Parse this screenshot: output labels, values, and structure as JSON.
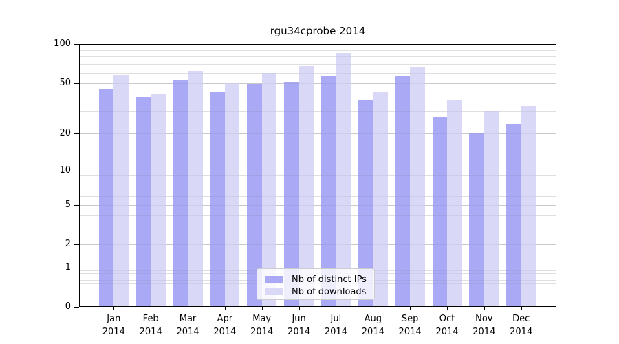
{
  "chart_data": {
    "type": "bar",
    "title": "rgu34cprobe 2014",
    "categories": [
      "Jan",
      "Feb",
      "Mar",
      "Apr",
      "May",
      "Jun",
      "Jul",
      "Aug",
      "Sep",
      "Oct",
      "Nov",
      "Dec"
    ],
    "category_year": "2014",
    "series": [
      {
        "name": "Nb of distinct IPs",
        "color": "#a9a9f5",
        "values": [
          45,
          39,
          53,
          43,
          49,
          51,
          56,
          37,
          57,
          27,
          20,
          24
        ]
      },
      {
        "name": "Nb of downloads",
        "color": "#d9d9f7",
        "values": [
          58,
          41,
          62,
          50,
          60,
          68,
          85,
          43,
          67,
          37,
          30,
          33
        ]
      }
    ],
    "xlabel": "",
    "ylabel": "",
    "y_axis": {
      "scale": "log(1+x)",
      "ticks": [
        0,
        1,
        2,
        5,
        10,
        20,
        50,
        100
      ],
      "minor_gridlines": [
        0.2,
        0.3,
        0.4,
        0.5,
        0.6,
        0.7,
        0.8,
        0.9,
        3,
        4,
        6,
        7,
        8,
        9,
        30,
        40,
        60,
        70,
        80,
        90
      ],
      "ylim": [
        0,
        100
      ]
    },
    "grid": "on",
    "legend_position": "lower-center-inside"
  }
}
